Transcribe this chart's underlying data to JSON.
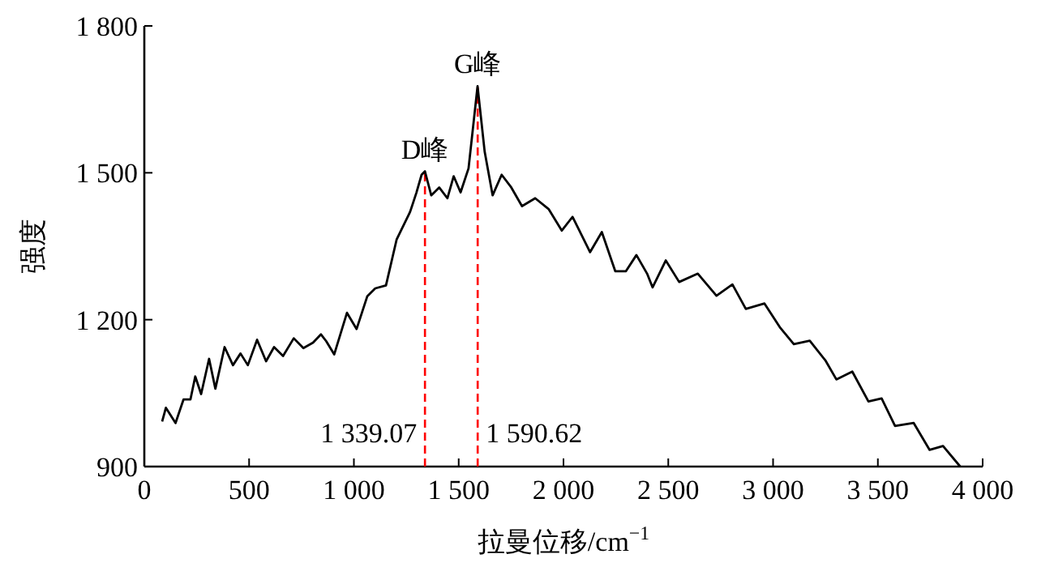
{
  "chart_data": {
    "type": "line",
    "xlabel": "拉曼位移/cm$^{−1}$",
    "ylabel": "强度",
    "xlim": [
      0,
      4000
    ],
    "ylim": [
      900,
      1800
    ],
    "xticks": [
      0,
      500,
      {
        "value": 1000,
        "label": "1 000"
      },
      {
        "value": 1500,
        "label": "1 500"
      },
      {
        "value": 2000,
        "label": "2 000"
      },
      {
        "value": 2500,
        "label": "2 500"
      },
      {
        "value": 3000,
        "label": "3 000"
      },
      {
        "value": 3500,
        "label": "3 500"
      },
      {
        "value": 4000,
        "label": "4 000"
      }
    ],
    "yticks": [
      900,
      {
        "value": 1200,
        "label": "1 200"
      },
      {
        "value": 1500,
        "label": "1 500"
      },
      {
        "value": 1800,
        "label": "1 800"
      }
    ],
    "grid": false,
    "marker": "none",
    "line_style": "solid",
    "series": [
      {
        "color": "#000000",
        "x": [
          85,
          103,
          149,
          187,
          220,
          243,
          271,
          309,
          339,
          383,
          423,
          459,
          494,
          538,
          581,
          619,
          662,
          713,
          759,
          805,
          843,
          868,
          906,
          967,
          1013,
          1064,
          1102,
          1153,
          1204,
          1268,
          1298,
          1323,
          1339,
          1369,
          1407,
          1446,
          1476,
          1509,
          1547,
          1590,
          1624,
          1662,
          1705,
          1751,
          1802,
          1865,
          1929,
          1992,
          2043,
          2069,
          2127,
          2183,
          2247,
          2298,
          2348,
          2399,
          2425,
          2488,
          2552,
          2641,
          2730,
          2806,
          2870,
          2959,
          3035,
          3099,
          3175,
          3251,
          3302,
          3378,
          3455,
          3518,
          3582,
          3671,
          3747,
          3811,
          3893
        ],
        "values": [
          992,
          1020,
          989,
          1037,
          1037,
          1084,
          1048,
          1120,
          1059,
          1144,
          1107,
          1131,
          1107,
          1159,
          1115,
          1144,
          1126,
          1162,
          1142,
          1153,
          1170,
          1156,
          1129,
          1214,
          1181,
          1248,
          1264,
          1270,
          1364,
          1420,
          1459,
          1496,
          1503,
          1454,
          1470,
          1448,
          1493,
          1460,
          1509,
          1677,
          1543,
          1454,
          1496,
          1470,
          1432,
          1448,
          1426,
          1382,
          1410,
          1388,
          1338,
          1379,
          1299,
          1299,
          1332,
          1294,
          1266,
          1321,
          1277,
          1294,
          1249,
          1272,
          1222,
          1233,
          1183,
          1150,
          1157,
          1116,
          1078,
          1094,
          1033,
          1039,
          983,
          989,
          934,
          942,
          900
        ]
      }
    ],
    "ref_lines": [
      {
        "axis": "x",
        "value": 1339.07,
        "label": "1 339.07",
        "color": "#ff0000",
        "line_style": "dashed"
      },
      {
        "axis": "x",
        "value": 1590.62,
        "label": "1 590.62",
        "color": "#ff0000",
        "line_style": "dashed"
      }
    ],
    "annotations": [
      {
        "text": "D峰",
        "x": 1339.07,
        "y": 1503
      },
      {
        "text": "G峰",
        "x": 1590.62,
        "y": 1677
      }
    ]
  }
}
